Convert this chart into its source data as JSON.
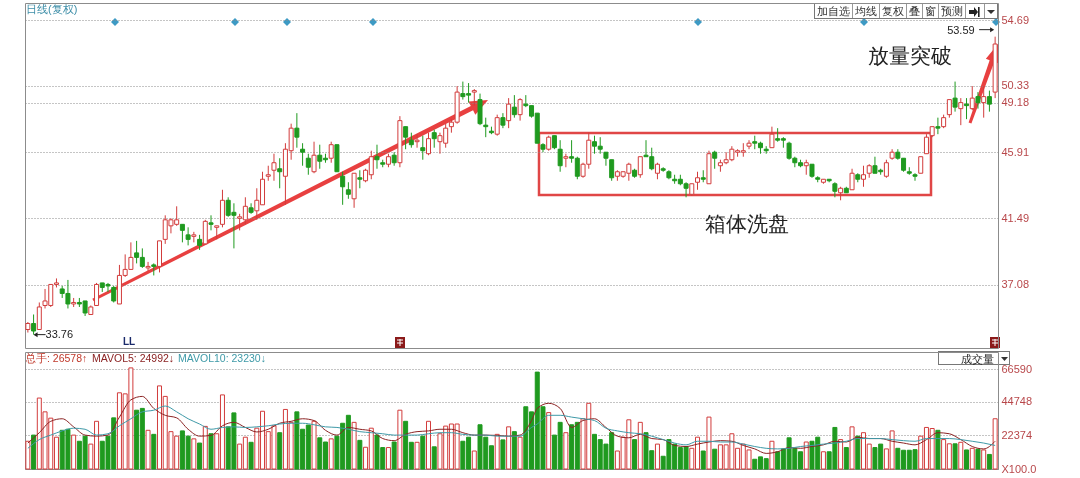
{
  "chart_data": [
    {
      "type": "candlestick",
      "categories": [
        null,
        null,
        null,
        null,
        null,
        null,
        null,
        null,
        null,
        null,
        null,
        null,
        null,
        null,
        null,
        null,
        null,
        null,
        null,
        null,
        null,
        null,
        null,
        null,
        null,
        null,
        null,
        null,
        null,
        null,
        null,
        null,
        null,
        null,
        null,
        null,
        null,
        null,
        null,
        null,
        null,
        null,
        null,
        null,
        null,
        null,
        null,
        null,
        null,
        null,
        null,
        null,
        null,
        null,
        null,
        null,
        null,
        null,
        null,
        null,
        null,
        null,
        null,
        null,
        null,
        null,
        null,
        null,
        null,
        null,
        null,
        null,
        null,
        null,
        null,
        null,
        null,
        null,
        null,
        null,
        null,
        null,
        null,
        null,
        null,
        null,
        null,
        null,
        null,
        null,
        null,
        null,
        null,
        null,
        null,
        null,
        null,
        null,
        null,
        null,
        null,
        null,
        null,
        null,
        null,
        null,
        null,
        null,
        null,
        null,
        null,
        null,
        null,
        null,
        null,
        null,
        null,
        null,
        null,
        null,
        null,
        null,
        null,
        null,
        null,
        null,
        null,
        null,
        null,
        null,
        null,
        null,
        null,
        null,
        null,
        null,
        null,
        null,
        null,
        null,
        null,
        null,
        null,
        null,
        null,
        null,
        null,
        null,
        null,
        null,
        null,
        null,
        null,
        null,
        null,
        null,
        null,
        null,
        null,
        null,
        null,
        null,
        null,
        null,
        null,
        null,
        null,
        null,
        null,
        null
      ],
      "ohlc": [
        [
          34.1,
          34.6,
          33.9,
          34.5
        ],
        [
          34.5,
          35.1,
          33.76,
          34.0
        ],
        [
          34.1,
          35.9,
          34.1,
          35.6
        ],
        [
          35.7,
          36.8,
          35.5,
          36.0
        ],
        [
          35.7,
          37.1,
          35.6,
          37.1
        ],
        [
          37.1,
          37.5,
          36.9,
          37.2
        ],
        [
          36.8,
          37.0,
          36.2,
          36.5
        ],
        [
          36.5,
          37.4,
          35.5,
          35.8
        ],
        [
          35.8,
          36.2,
          35.6,
          35.9
        ],
        [
          35.9,
          36.2,
          35.6,
          35.8
        ],
        [
          36.0,
          36.0,
          35.0,
          35.2
        ],
        [
          35.1,
          35.7,
          35.1,
          35.6
        ],
        [
          35.7,
          37.2,
          35.7,
          37.1
        ],
        [
          37.2,
          37.2,
          36.6,
          36.9
        ],
        [
          37.1,
          37.2,
          36.6,
          37.0
        ],
        [
          36.9,
          37.0,
          35.9,
          36.0
        ],
        [
          35.8,
          38.4,
          35.8,
          37.7
        ],
        [
          37.7,
          39.1,
          37.6,
          38.1
        ],
        [
          38.1,
          39.9,
          38.1,
          38.9
        ],
        [
          39.2,
          40.0,
          38.5,
          38.9
        ],
        [
          38.9,
          39.5,
          38.2,
          38.3
        ],
        [
          38.2,
          38.6,
          38.0,
          38.3
        ],
        [
          38.4,
          38.5,
          37.7,
          38.3
        ],
        [
          38.3,
          40.0,
          37.9,
          40.0
        ],
        [
          40.1,
          41.7,
          39.8,
          41.4
        ],
        [
          41.0,
          41.5,
          40.5,
          41.4
        ],
        [
          41.1,
          42.3,
          41.0,
          41.4
        ],
        [
          41.1,
          41.1,
          39.9,
          40.7
        ],
        [
          40.4,
          40.9,
          39.7,
          40.1
        ],
        [
          40.3,
          40.6,
          39.9,
          40.4
        ],
        [
          40.1,
          40.4,
          39.4,
          39.7
        ],
        [
          39.8,
          41.4,
          39.8,
          41.3
        ],
        [
          41.2,
          41.7,
          40.7,
          41.1
        ],
        [
          40.9,
          41.0,
          40.1,
          41.0
        ],
        [
          41.1,
          43.4,
          40.9,
          42.7
        ],
        [
          42.7,
          42.9,
          41.6,
          41.7
        ],
        [
          41.9,
          42.5,
          39.5,
          41.7
        ],
        [
          41.5,
          41.8,
          40.7,
          41.6
        ],
        [
          41.4,
          42.9,
          41.1,
          42.3
        ],
        [
          42.2,
          42.5,
          41.8,
          41.9
        ],
        [
          42.0,
          43.5,
          41.4,
          42.7
        ],
        [
          42.4,
          44.6,
          42.4,
          44.1
        ],
        [
          44.3,
          45.0,
          44.0,
          44.4
        ],
        [
          44.7,
          45.8,
          44.0,
          45.2
        ],
        [
          44.8,
          45.5,
          43.5,
          44.6
        ],
        [
          44.3,
          46.5,
          42.4,
          46.1
        ],
        [
          46.0,
          47.8,
          45.4,
          47.5
        ],
        [
          47.5,
          48.5,
          46.2,
          46.9
        ],
        [
          46.1,
          46.5,
          45.0,
          45.9
        ],
        [
          45.5,
          45.8,
          44.4,
          44.9
        ],
        [
          44.6,
          46.6,
          44.5,
          45.7
        ],
        [
          45.7,
          46.4,
          44.8,
          45.3
        ],
        [
          45.5,
          45.8,
          45.2,
          45.4
        ],
        [
          45.5,
          46.6,
          45.2,
          46.4
        ],
        [
          46.4,
          46.4,
          44.6,
          44.6
        ],
        [
          44.3,
          44.6,
          42.4,
          43.6
        ],
        [
          43.4,
          43.9,
          42.8,
          43.1
        ],
        [
          42.8,
          44.5,
          42.2,
          44.5
        ],
        [
          44.2,
          44.7,
          43.5,
          44.1
        ],
        [
          44.0,
          44.8,
          43.9,
          44.7
        ],
        [
          44.4,
          46.0,
          44.1,
          45.6
        ],
        [
          45.6,
          46.4,
          44.8,
          45.4
        ],
        [
          45.2,
          45.4,
          44.9,
          45.1
        ],
        [
          45.1,
          45.8,
          44.9,
          45.6
        ],
        [
          45.7,
          45.9,
          45.0,
          45.2
        ],
        [
          45.2,
          48.3,
          44.9,
          48.0
        ],
        [
          47.6,
          47.6,
          46.1,
          46.9
        ],
        [
          46.7,
          47.2,
          46.2,
          46.4
        ],
        [
          46.6,
          47.1,
          46.2,
          46.7
        ],
        [
          46.2,
          47.0,
          45.4,
          46.0
        ],
        [
          45.8,
          47.2,
          45.7,
          46.8
        ],
        [
          47.2,
          47.4,
          46.2,
          46.8
        ],
        [
          46.6,
          47.2,
          45.8,
          47.0
        ],
        [
          46.5,
          47.8,
          46.2,
          47.5
        ],
        [
          47.6,
          48.1,
          47.2,
          47.9
        ],
        [
          47.9,
          50.3,
          47.8,
          49.9
        ],
        [
          49.8,
          50.6,
          49.4,
          49.6
        ],
        [
          49.8,
          50.5,
          49.2,
          49.7
        ],
        [
          49.9,
          50.1,
          49.0,
          50.0
        ],
        [
          49.4,
          49.8,
          47.7,
          47.8
        ],
        [
          47.7,
          48.2,
          46.9,
          47.6
        ],
        [
          47.3,
          47.6,
          47.1,
          47.2
        ],
        [
          47.1,
          48.4,
          47.0,
          48.2
        ],
        [
          48.2,
          48.5,
          47.5,
          47.7
        ],
        [
          48.0,
          49.5,
          47.5,
          49.1
        ],
        [
          48.9,
          49.7,
          48.2,
          48.4
        ],
        [
          48.4,
          49.5,
          48.0,
          49.4
        ],
        [
          49.1,
          49.7,
          48.9,
          49.0
        ],
        [
          49.0,
          49.0,
          48.2,
          48.3
        ],
        [
          48.5,
          48.5,
          46.5,
          46.5
        ],
        [
          46.4,
          46.5,
          45.9,
          46.1
        ],
        [
          46.1,
          47.0,
          46.0,
          46.9
        ],
        [
          47.0,
          47.0,
          46.1,
          46.2
        ],
        [
          46.1,
          46.7,
          44.6,
          45.0
        ],
        [
          45.5,
          45.8,
          44.9,
          45.6
        ],
        [
          45.6,
          46.7,
          45.2,
          45.5
        ],
        [
          45.5,
          45.6,
          44.1,
          44.3
        ],
        [
          44.3,
          45.2,
          44.2,
          45.1
        ],
        [
          45.1,
          47.2,
          44.8,
          46.7
        ],
        [
          46.6,
          47.0,
          45.8,
          46.3
        ],
        [
          46.3,
          46.9,
          45.8,
          46.1
        ],
        [
          45.9,
          45.9,
          45.0,
          45.5
        ],
        [
          45.4,
          45.4,
          44.0,
          44.2
        ],
        [
          44.3,
          44.7,
          44.0,
          44.6
        ],
        [
          44.3,
          44.6,
          44.2,
          44.6
        ],
        [
          44.5,
          45.2,
          44.0,
          45.1
        ],
        [
          44.7,
          44.8,
          44.2,
          44.3
        ],
        [
          44.4,
          45.6,
          44.2,
          45.6
        ],
        [
          45.7,
          46.7,
          45.6,
          45.6
        ],
        [
          45.6,
          46.2,
          44.7,
          44.8
        ],
        [
          44.5,
          45.2,
          44.1,
          45.1
        ],
        [
          44.8,
          44.9,
          44.6,
          44.7
        ],
        [
          44.6,
          44.7,
          44.1,
          44.2
        ],
        [
          44.1,
          44.4,
          43.8,
          44.0
        ],
        [
          44.1,
          44.4,
          43.7,
          43.8
        ],
        [
          43.8,
          43.9,
          42.9,
          43.5
        ],
        [
          43.1,
          43.8,
          43.0,
          43.8
        ],
        [
          43.9,
          44.6,
          43.4,
          44.2
        ],
        [
          44.2,
          44.7,
          43.9,
          44.1
        ],
        [
          43.8,
          46.0,
          43.8,
          45.8
        ],
        [
          45.9,
          46.0,
          44.8,
          45.5
        ],
        [
          45.0,
          45.4,
          44.6,
          45.2
        ],
        [
          45.2,
          45.9,
          45.1,
          45.4
        ],
        [
          45.4,
          46.3,
          45.3,
          46.1
        ],
        [
          45.9,
          46.1,
          45.6,
          46.0
        ],
        [
          45.9,
          46.5,
          45.6,
          46.0
        ],
        [
          46.3,
          46.7,
          46.1,
          46.5
        ],
        [
          46.6,
          47.0,
          46.1,
          46.5
        ],
        [
          46.5,
          46.6,
          45.8,
          46.2
        ],
        [
          46.1,
          46.3,
          45.8,
          46.0
        ],
        [
          46.2,
          47.6,
          46.2,
          47.1
        ],
        [
          46.8,
          47.5,
          46.6,
          46.7
        ],
        [
          46.8,
          46.9,
          46.2,
          46.7
        ],
        [
          46.5,
          46.6,
          45.4,
          45.5
        ],
        [
          45.5,
          45.6,
          44.9,
          45.2
        ],
        [
          45.2,
          45.4,
          44.9,
          45.0
        ],
        [
          45.0,
          45.4,
          44.4,
          45.2
        ],
        [
          45.1,
          45.1,
          44.2,
          44.3
        ],
        [
          44.2,
          44.3,
          43.9,
          44.1
        ],
        [
          43.9,
          44.1,
          43.8,
          44.1
        ],
        [
          44.1,
          44.1,
          43.9,
          44.0
        ],
        [
          43.8,
          43.9,
          42.9,
          43.3
        ],
        [
          43.2,
          43.6,
          42.7,
          43.5
        ],
        [
          43.5,
          43.6,
          43.2,
          43.2
        ],
        [
          43.4,
          44.8,
          43.4,
          44.5
        ],
        [
          44.4,
          44.5,
          43.9,
          44.1
        ],
        [
          44.1,
          45.0,
          43.6,
          44.4
        ],
        [
          44.5,
          45.1,
          44.2,
          45.0
        ],
        [
          45.0,
          45.6,
          44.5,
          44.5
        ],
        [
          44.7,
          44.8,
          44.4,
          44.6
        ],
        [
          44.3,
          45.4,
          44.2,
          45.2
        ],
        [
          45.5,
          46.1,
          45.4,
          45.9
        ],
        [
          45.9,
          46.1,
          45.4,
          45.5
        ],
        [
          45.5,
          45.5,
          44.6,
          44.7
        ],
        [
          44.6,
          44.9,
          44.4,
          44.5
        ],
        [
          44.4,
          44.5,
          44.0,
          44.3
        ],
        [
          44.5,
          45.6,
          44.5,
          45.6
        ],
        [
          45.8,
          47.1,
          45.8,
          46.9
        ],
        [
          47.0,
          47.6,
          46.9,
          47.6
        ],
        [
          47.6,
          48.2,
          47.1,
          47.5
        ],
        [
          47.6,
          48.4,
          47.5,
          48.2
        ],
        [
          48.4,
          49.4,
          48.2,
          49.4
        ],
        [
          49.5,
          50.6,
          48.6,
          48.9
        ],
        [
          48.8,
          49.5,
          47.7,
          49.2
        ],
        [
          49.1,
          49.5,
          48.1,
          49.0
        ],
        [
          48.8,
          50.3,
          48.7,
          49.5
        ],
        [
          49.6,
          49.9,
          48.8,
          49.2
        ],
        [
          49.2,
          50.3,
          48.2,
          49.6
        ],
        [
          49.6,
          50.0,
          48.6,
          49.1
        ],
        [
          49.9,
          53.59,
          49.5,
          53.1
        ]
      ],
      "colors": [
        "#d23c3c",
        "#1f9a1f",
        "#d23c3c",
        "#d23c3c",
        "#d23c3c",
        "#d23c3c",
        "#1f9a1f",
        "#1f9a1f",
        "#d23c3c",
        "#1f9a1f",
        "#1f9a1f",
        "#d23c3c",
        "#d23c3c",
        "#1f9a1f",
        "#1f9a1f",
        "#1f9a1f",
        "#d23c3c",
        "#d23c3c",
        "#d23c3c",
        "#1f9a1f",
        "#1f9a1f",
        "#d23c3c",
        "#1f9a1f",
        "#d23c3c",
        "#d23c3c",
        "#d23c3c",
        "#d23c3c",
        "#1f9a1f",
        "#1f9a1f",
        "#d23c3c",
        "#1f9a1f",
        "#d23c3c",
        "#1f9a1f",
        "#d23c3c",
        "#d23c3c",
        "#1f9a1f",
        "#1f9a1f",
        "#d23c3c",
        "#d23c3c",
        "#1f9a1f",
        "#d23c3c",
        "#d23c3c",
        "#d23c3c",
        "#d23c3c",
        "#1f9a1f",
        "#d23c3c",
        "#d23c3c",
        "#1f9a1f",
        "#1f9a1f",
        "#1f9a1f",
        "#d23c3c",
        "#1f9a1f",
        "#1f9a1f",
        "#d23c3c",
        "#1f9a1f",
        "#1f9a1f",
        "#1f9a1f",
        "#d23c3c",
        "#1f9a1f",
        "#d23c3c",
        "#d23c3c",
        "#1f9a1f",
        "#1f9a1f",
        "#d23c3c",
        "#1f9a1f",
        "#d23c3c",
        "#1f9a1f",
        "#1f9a1f",
        "#d23c3c",
        "#1f9a1f",
        "#d23c3c",
        "#1f9a1f",
        "#d23c3c",
        "#d23c3c",
        "#d23c3c",
        "#d23c3c",
        "#1f9a1f",
        "#1f9a1f",
        "#d23c3c",
        "#1f9a1f",
        "#1f9a1f",
        "#1f9a1f",
        "#d23c3c",
        "#1f9a1f",
        "#d23c3c",
        "#1f9a1f",
        "#d23c3c",
        "#1f9a1f",
        "#1f9a1f",
        "#1f9a1f",
        "#1f9a1f",
        "#d23c3c",
        "#1f9a1f",
        "#1f9a1f",
        "#d23c3c",
        "#1f9a1f",
        "#1f9a1f",
        "#d23c3c",
        "#d23c3c",
        "#1f9a1f",
        "#1f9a1f",
        "#1f9a1f",
        "#1f9a1f",
        "#d23c3c",
        "#d23c3c",
        "#d23c3c",
        "#1f9a1f",
        "#d23c3c",
        "#1f9a1f",
        "#1f9a1f",
        "#d23c3c",
        "#1f9a1f",
        "#1f9a1f",
        "#1f9a1f",
        "#1f9a1f",
        "#1f9a1f",
        "#d23c3c",
        "#d23c3c",
        "#1f9a1f",
        "#d23c3c",
        "#1f9a1f",
        "#d23c3c",
        "#d23c3c",
        "#d23c3c",
        "#d23c3c",
        "#d23c3c",
        "#d23c3c",
        "#1f9a1f",
        "#1f9a1f",
        "#1f9a1f",
        "#d23c3c",
        "#1f9a1f",
        "#1f9a1f",
        "#1f9a1f",
        "#1f9a1f",
        "#1f9a1f",
        "#d23c3c",
        "#1f9a1f",
        "#1f9a1f",
        "#d23c3c",
        "#1f9a1f",
        "#1f9a1f",
        "#d23c3c",
        "#1f9a1f",
        "#d23c3c",
        "#1f9a1f",
        "#d23c3c",
        "#d23c3c",
        "#1f9a1f",
        "#1f9a1f",
        "#d23c3c",
        "#d23c3c",
        "#1f9a1f",
        "#1f9a1f",
        "#1f9a1f",
        "#1f9a1f",
        "#d23c3c",
        "#d23c3c",
        "#d23c3c",
        "#1f9a1f",
        "#d23c3c",
        "#d23c3c",
        "#1f9a1f",
        "#d23c3c",
        "#1f9a1f",
        "#d23c3c",
        "#1f9a1f",
        "#d23c3c",
        "#1f9a1f",
        "#d23c3c"
      ],
      "ylim": [
        32.87,
        55.83
      ],
      "yticks": [
        37.08,
        41.49,
        45.91,
        49.18,
        50.33,
        54.69
      ],
      "grid": "y",
      "tick_labels": "y",
      "annotations": [
        "日线(复权)",
        "加自选",
        "均线",
        "复权",
        "叠",
        "窗",
        "预测",
        "53.59",
        "33.76",
        "箱体洗盘",
        "放量突破",
        "LL"
      ]
    },
    {
      "type": "bar",
      "categories": [
        null,
        null,
        null,
        null,
        null,
        null,
        null,
        null,
        null,
        null,
        null,
        null,
        null,
        null,
        null,
        null,
        null,
        null,
        null,
        null,
        null,
        null,
        null,
        null,
        null,
        null,
        null,
        null,
        null,
        null,
        null,
        null,
        null,
        null,
        null,
        null,
        null,
        null,
        null,
        null,
        null,
        null,
        null,
        null,
        null,
        null,
        null,
        null,
        null,
        null,
        null,
        null,
        null,
        null,
        null,
        null,
        null,
        null,
        null,
        null,
        null,
        null,
        null,
        null,
        null,
        null,
        null,
        null,
        null,
        null,
        null,
        null,
        null,
        null,
        null,
        null,
        null,
        null,
        null,
        null,
        null,
        null,
        null,
        null,
        null,
        null,
        null,
        null,
        null,
        null,
        null,
        null,
        null,
        null,
        null,
        null,
        null,
        null,
        null,
        null,
        null,
        null,
        null,
        null,
        null,
        null,
        null,
        null,
        null,
        null,
        null,
        null,
        null,
        null,
        null,
        null,
        null,
        null,
        null,
        null,
        null,
        null,
        null,
        null,
        null,
        null,
        null,
        null,
        null,
        null,
        null,
        null,
        null,
        null,
        null,
        null,
        null,
        null,
        null,
        null,
        null,
        null,
        null,
        null,
        null,
        null,
        null,
        null,
        null,
        null,
        null,
        null,
        null,
        null,
        null,
        null,
        null,
        null,
        null,
        null,
        null,
        null,
        null,
        null,
        null,
        null,
        null,
        null,
        null,
        null
      ],
      "series": [
        {
          "type": "bar",
          "values": [
            18500,
            22600,
            47300,
            38100,
            33900,
            21200,
            25800,
            26500,
            22600,
            18500,
            21900,
            16600,
            31800,
            18500,
            21900,
            34100,
            50800,
            50100,
            67400,
            39200,
            40400,
            25800,
            23100,
            55400,
            48400,
            24900,
            21900,
            25400,
            21900,
            20100,
            17300,
            28400,
            23500,
            23500,
            49400,
            28100,
            37400,
            16600,
            21200,
            17800,
            27200,
            38500,
            24900,
            28800,
            24200,
            39700,
            31100,
            38100,
            26500,
            29300,
            31800,
            20800,
            18000,
            20100,
            21900,
            30500,
            35800,
            31100,
            19100,
            14500,
            27200,
            22600,
            14300,
            14300,
            18000,
            39200,
            31800,
            17800,
            17800,
            21900,
            31800,
            14800,
            23500,
            28600,
            30000,
            30000,
            18500,
            21200,
            12000,
            29500,
            21200,
            15500,
            23100,
            19400,
            28100,
            24900,
            21200,
            41500,
            38100,
            64600,
            41500,
            37600,
            22600,
            31100,
            24200,
            29500,
            31100,
            33500,
            43800,
            23100,
            19600,
            16600,
            24200,
            12000,
            21200,
            32800,
            19600,
            31100,
            24200,
            12200,
            16600,
            8500,
            19600,
            16600,
            14300,
            15000,
            13800,
            21200,
            12000,
            34600,
            13200,
            16100,
            16100,
            23500,
            13800,
            16600,
            12700,
            6500,
            8100,
            6900,
            18500,
            11500,
            13400,
            20800,
            13800,
            11500,
            18000,
            18500,
            21200,
            11500,
            11500,
            27700,
            19600,
            14300,
            28100,
            21900,
            24200,
            16600,
            14300,
            16600,
            13400,
            25400,
            13800,
            12500,
            12500,
            12900,
            21900,
            27700,
            27000,
            25800,
            19600,
            16800,
            16800,
            17800,
            12700,
            13800,
            13200,
            12700,
            9700,
            33500
          ],
          "colors": [
            "#d23c3c",
            "#1f9a1f",
            "#d23c3c",
            "#d23c3c",
            "#d23c3c",
            "#d23c3c",
            "#1f9a1f",
            "#1f9a1f",
            "#d23c3c",
            "#1f9a1f",
            "#1f9a1f",
            "#d23c3c",
            "#d23c3c",
            "#1f9a1f",
            "#1f9a1f",
            "#1f9a1f",
            "#d23c3c",
            "#d23c3c",
            "#d23c3c",
            "#1f9a1f",
            "#1f9a1f",
            "#d23c3c",
            "#1f9a1f",
            "#d23c3c",
            "#d23c3c",
            "#d23c3c",
            "#d23c3c",
            "#1f9a1f",
            "#1f9a1f",
            "#d23c3c",
            "#1f9a1f",
            "#d23c3c",
            "#1f9a1f",
            "#d23c3c",
            "#d23c3c",
            "#1f9a1f",
            "#1f9a1f",
            "#d23c3c",
            "#d23c3c",
            "#1f9a1f",
            "#d23c3c",
            "#d23c3c",
            "#d23c3c",
            "#d23c3c",
            "#1f9a1f",
            "#d23c3c",
            "#d23c3c",
            "#1f9a1f",
            "#1f9a1f",
            "#1f9a1f",
            "#d23c3c",
            "#1f9a1f",
            "#1f9a1f",
            "#d23c3c",
            "#1f9a1f",
            "#1f9a1f",
            "#1f9a1f",
            "#d23c3c",
            "#1f9a1f",
            "#d23c3c",
            "#d23c3c",
            "#1f9a1f",
            "#1f9a1f",
            "#d23c3c",
            "#1f9a1f",
            "#d23c3c",
            "#1f9a1f",
            "#1f9a1f",
            "#d23c3c",
            "#1f9a1f",
            "#d23c3c",
            "#1f9a1f",
            "#d23c3c",
            "#d23c3c",
            "#d23c3c",
            "#d23c3c",
            "#1f9a1f",
            "#1f9a1f",
            "#d23c3c",
            "#1f9a1f",
            "#1f9a1f",
            "#1f9a1f",
            "#d23c3c",
            "#1f9a1f",
            "#d23c3c",
            "#1f9a1f",
            "#d23c3c",
            "#1f9a1f",
            "#1f9a1f",
            "#1f9a1f",
            "#1f9a1f",
            "#d23c3c",
            "#1f9a1f",
            "#1f9a1f",
            "#d23c3c",
            "#1f9a1f",
            "#1f9a1f",
            "#d23c3c",
            "#d23c3c",
            "#1f9a1f",
            "#1f9a1f",
            "#1f9a1f",
            "#1f9a1f",
            "#d23c3c",
            "#d23c3c",
            "#d23c3c",
            "#1f9a1f",
            "#d23c3c",
            "#1f9a1f",
            "#1f9a1f",
            "#d23c3c",
            "#1f9a1f",
            "#1f9a1f",
            "#1f9a1f",
            "#1f9a1f",
            "#1f9a1f",
            "#d23c3c",
            "#d23c3c",
            "#1f9a1f",
            "#d23c3c",
            "#1f9a1f",
            "#d23c3c",
            "#d23c3c",
            "#d23c3c",
            "#d23c3c",
            "#d23c3c",
            "#d23c3c",
            "#1f9a1f",
            "#1f9a1f",
            "#1f9a1f",
            "#d23c3c",
            "#1f9a1f",
            "#1f9a1f",
            "#1f9a1f",
            "#1f9a1f",
            "#1f9a1f",
            "#d23c3c",
            "#1f9a1f",
            "#1f9a1f",
            "#d23c3c",
            "#1f9a1f",
            "#1f9a1f",
            "#d23c3c",
            "#1f9a1f",
            "#d23c3c",
            "#1f9a1f",
            "#d23c3c",
            "#d23c3c",
            "#1f9a1f",
            "#1f9a1f",
            "#d23c3c",
            "#d23c3c",
            "#1f9a1f",
            "#1f9a1f",
            "#1f9a1f",
            "#1f9a1f",
            "#d23c3c",
            "#d23c3c",
            "#d23c3c",
            "#1f9a1f",
            "#d23c3c",
            "#d23c3c",
            "#1f9a1f",
            "#d23c3c",
            "#1f9a1f",
            "#d23c3c",
            "#1f9a1f",
            "#d23c3c",
            "#1f9a1f",
            "#d23c3c"
          ]
        },
        {
          "type": "line",
          "color": "#8b2323",
          "values": [
            17300,
            null,
            24200,
            null,
            31800,
            null,
            33500,
            null,
            28100,
            null,
            22600,
            null,
            21900,
            null,
            22600,
            null,
            34600,
            null,
            46100,
            null,
            48400,
            null,
            40400,
            null,
            35800,
            null,
            34100,
            null,
            26500,
            null,
            21900,
            null,
            22400,
            null,
            28800,
            null,
            31100,
            null,
            27700,
            null,
            24700,
            null,
            26500,
            null,
            30500,
            null,
            31800,
            null,
            33500,
            null,
            32300,
            null,
            25800,
            null,
            22600,
            null,
            27700,
            null,
            26500,
            null,
            25400,
            null,
            20300,
            null,
            18900,
            null,
            23100,
            null,
            24900,
            null,
            25400,
            null,
            26500,
            null,
            26500,
            null,
            24200,
            null,
            22600,
            null,
            22600,
            null,
            22400,
            null,
            21900,
            null,
            22600,
            null,
            32300,
            40400,
            null,
            43800,
            null,
            40400,
            null,
            27700,
            null,
            32300,
            null,
            33500,
            null,
            27700,
            null,
            21900,
            null,
            20800,
            null,
            23100,
            null,
            20300,
            null,
            19600,
            null,
            15700,
            null,
            15000,
            null,
            16600,
            null,
            18000,
            null,
            18900,
            null,
            18500,
            null,
            15700,
            null,
            13400,
            null,
            10400,
            null,
            11500,
            null,
            14300,
            null,
            13800,
            null,
            15000,
            null,
            16100,
            null,
            18500,
            null,
            18000,
            null,
            21200,
            null,
            20300,
            null,
            20300,
            null,
            18500,
            null,
            17300,
            null,
            16100,
            null,
            19600,
            null,
            24200,
            null,
            23500,
            null,
            19600,
            null,
            15000,
            null,
            13400,
            null,
            18500
          ]
        },
        {
          "type": "line",
          "color": "#3f9aa8",
          "values": [
            13800,
            null,
            19600,
            null,
            22600,
            null,
            25400,
            null,
            27200,
            null,
            26500,
            null,
            22600,
            null,
            23500,
            null,
            28800,
            null,
            33500,
            null,
            38100,
            null,
            39200,
            null,
            42000,
            null,
            38100,
            null,
            33500,
            null,
            30000,
            null,
            26500,
            null,
            27700,
            null,
            28100,
            null,
            27700,
            null,
            28100,
            null,
            28800,
            null,
            30000,
            null,
            30500,
            null,
            30500,
            null,
            29500,
            null,
            28100,
            null,
            27700,
            null,
            26500,
            null,
            24900,
            null,
            24200,
            null,
            23500,
            null,
            22600,
            null,
            22600,
            null,
            22600,
            null,
            23500,
            null,
            24200,
            null,
            24200,
            null,
            23100,
            null,
            22600,
            null,
            22600,
            null,
            21900,
            null,
            21900,
            null,
            21900,
            null,
            27700,
            30000,
            null,
            35800,
            null,
            35800,
            null,
            34600,
            null,
            33500,
            null,
            32300,
            null,
            27200,
            null,
            25400,
            null,
            24200,
            null,
            23500,
            null,
            21900,
            null,
            19600,
            null,
            17300,
            null,
            16100,
            null,
            18500,
            null,
            18500,
            null,
            18000,
            null,
            18000,
            null,
            16600,
            null,
            15000,
            null,
            13800,
            null,
            13400,
            null,
            13800,
            null,
            15000,
            null,
            15700,
            null,
            16600,
            null,
            17300,
            null,
            18500,
            null,
            20300,
            null,
            20300,
            null,
            20300,
            null,
            19600,
            null,
            18900,
            null,
            18500,
            null,
            20300,
            null,
            20300,
            null,
            20300,
            null,
            19600,
            null,
            18500,
            null,
            17300,
            null,
            15700
          ]
        }
      ],
      "ylim": [
        0,
        78000
      ],
      "yticks": [
        {
          "value": 0,
          "label": "X100.0"
        },
        22374,
        44748,
        66590
      ],
      "grid": "y",
      "tick_labels": "y",
      "annotations": [
        "总手: 26578↑",
        "MAVOL5: 24992↓",
        "MAVOL10: 23230↓",
        "成交量"
      ]
    }
  ]
}
